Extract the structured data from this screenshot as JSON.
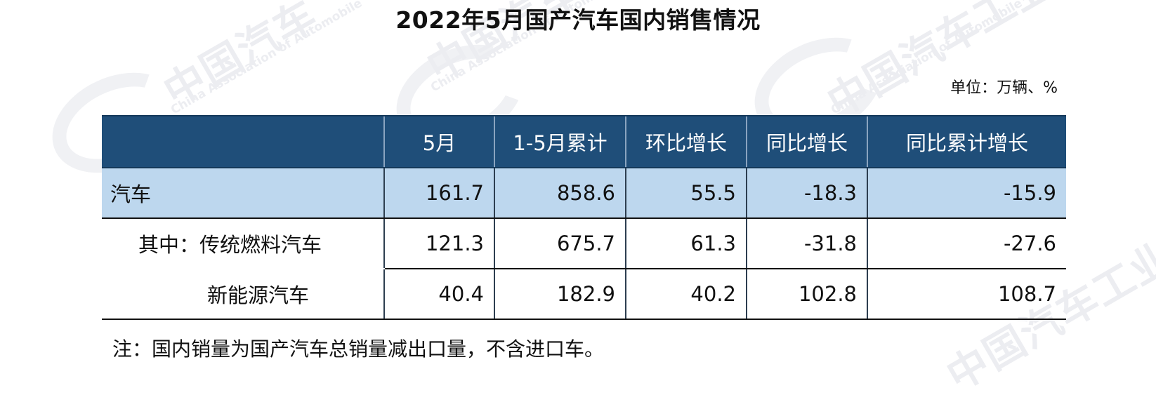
{
  "title": "2022年5月国产汽车国内销售情况",
  "unit": "单位：万辆、%",
  "watermark": {
    "cn": "中国汽车工业协会",
    "en": "China Association of Automobile Manufacturers"
  },
  "table": {
    "headers": [
      "",
      "5月",
      "1-5月累计",
      "环比增长",
      "同比增长",
      "同比累计增长"
    ],
    "rows": [
      {
        "label": "汽车",
        "values": [
          "161.7",
          "858.6",
          "55.5",
          "-18.3",
          "-15.9"
        ]
      },
      {
        "label": "其中：传统燃料汽车",
        "values": [
          "121.3",
          "675.7",
          "61.3",
          "-31.8",
          "-27.6"
        ]
      },
      {
        "label": "新能源汽车",
        "values": [
          "40.4",
          "182.9",
          "40.2",
          "102.8",
          "108.7"
        ]
      }
    ]
  },
  "note": "注：国内销量为国产汽车总销量减出口量，不含进口车。",
  "colors": {
    "header_bg": "#1f4e79",
    "highlight_row": "#bdd7ee",
    "header_text": "#ffffff"
  }
}
